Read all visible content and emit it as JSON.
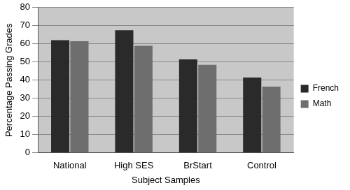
{
  "chart_data": {
    "type": "bar",
    "x_label": "Subject Samples",
    "y_label": "Percentage Passing Grades",
    "categories": [
      "National",
      "High SES",
      "BrStart",
      "Control"
    ],
    "series": [
      {
        "name": "French",
        "color": "#2a2a2a",
        "values": [
          62,
          67.5,
          51.5,
          41.5
        ]
      },
      {
        "name": "Math",
        "color": "#6e6e6e",
        "values": [
          61.5,
          59,
          48.5,
          36.5
        ]
      }
    ],
    "ylim": [
      0,
      80
    ],
    "yticks": [
      0,
      10,
      20,
      30,
      40,
      50,
      60,
      70,
      80
    ],
    "grid": true,
    "legend": "right"
  }
}
